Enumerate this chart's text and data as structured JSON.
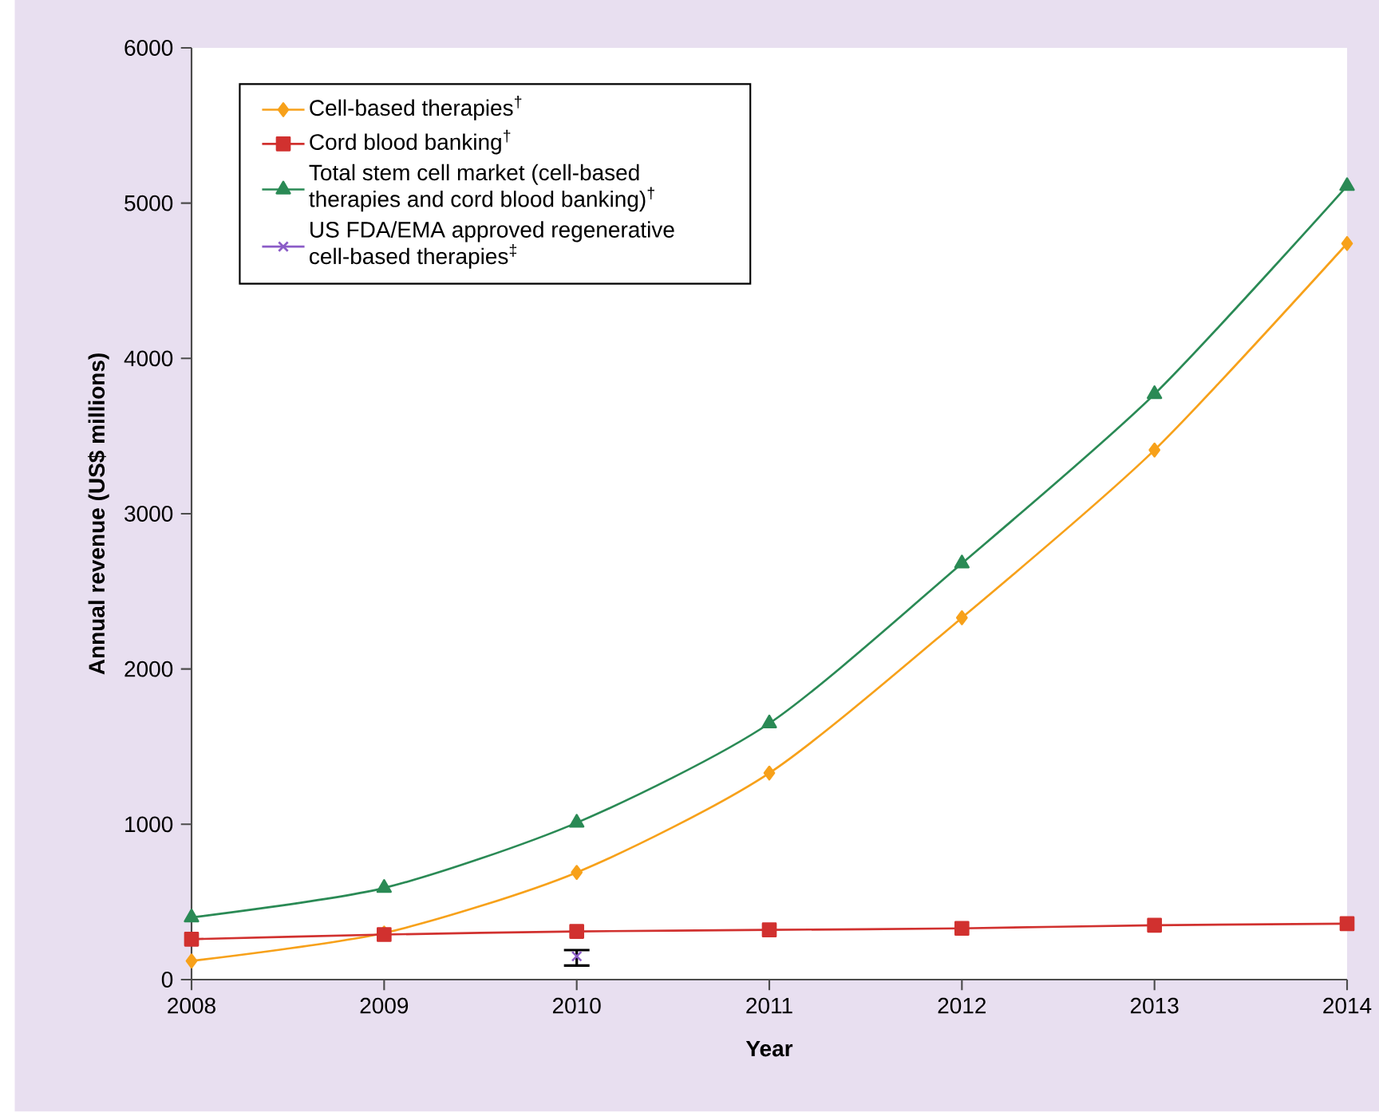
{
  "chart_data": {
    "type": "line",
    "xlabel": "Year",
    "ylabel": "Annual revenue (US$ millions)",
    "x": [
      2008,
      2009,
      2010,
      2011,
      2012,
      2013,
      2014
    ],
    "xlim": [
      2008,
      2014
    ],
    "xticks": [
      2008,
      2009,
      2010,
      2011,
      2012,
      2013,
      2014
    ],
    "ylim": [
      0,
      6000
    ],
    "yticks": [
      0,
      1000,
      2000,
      3000,
      4000,
      5000,
      6000
    ],
    "legend": "top left",
    "line_style": "solid",
    "series": [
      {
        "name": "Cell-based therapies$^{†}$",
        "color": "#f7a11a",
        "marker": "diamond",
        "values": [
          120,
          300,
          690,
          1330,
          2330,
          3410,
          4740
        ]
      },
      {
        "name": "Cord blood banking$^{†}$",
        "color": "#d1312f",
        "marker": "square",
        "values": [
          260,
          290,
          310,
          320,
          330,
          350,
          360
        ]
      },
      {
        "name": "Total stem cell market (cell-based therapies and cord blood banking)$^{†}$",
        "color": "#2a8a55",
        "marker": "triangle",
        "values": [
          400,
          590,
          1010,
          1650,
          2680,
          3770,
          5110
        ]
      },
      {
        "name": "US FDA/EMA approved regenerative cell-based therapies$^{‡}$",
        "color": "#8b5cc7",
        "marker": "cross",
        "x": [
          2010
        ],
        "values": [
          150
        ],
        "errors": [
          [
            90,
            190
          ]
        ]
      }
    ]
  }
}
